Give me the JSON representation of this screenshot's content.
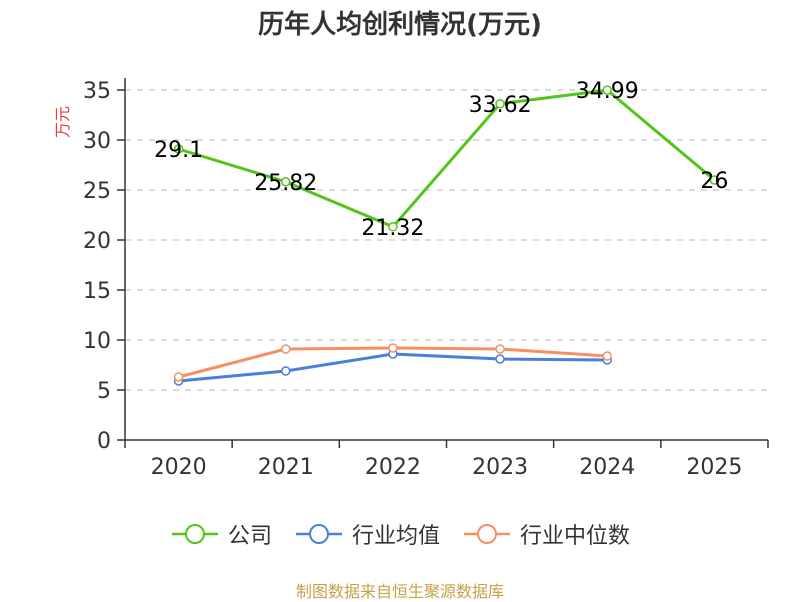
{
  "chart_data": {
    "type": "line",
    "title": "历年人均创利情况(万元)",
    "ylabel": "万元",
    "xlabel": "",
    "categories": [
      "2020",
      "2021",
      "2022",
      "2023",
      "2024",
      "2025"
    ],
    "ylim": [
      0,
      35
    ],
    "yticks": [
      0,
      5,
      10,
      15,
      20,
      25,
      30,
      35
    ],
    "grid": true,
    "legend_position": "bottom",
    "series": [
      {
        "name": "公司",
        "color": "#52c41a",
        "values": [
          29.1,
          25.82,
          21.32,
          33.62,
          34.99,
          26
        ],
        "labels": [
          "29.1",
          "25.82",
          "21.32",
          "33.62",
          "34.99",
          "26"
        ]
      },
      {
        "name": "行业均值",
        "color": "#4a7fdc",
        "values": [
          5.9,
          6.9,
          8.6,
          8.1,
          8.0,
          null
        ]
      },
      {
        "name": "行业中位数",
        "color": "#f59062",
        "values": [
          6.3,
          9.1,
          9.2,
          9.1,
          8.4,
          null
        ]
      }
    ]
  },
  "source_note": "制图数据来自恒生聚源数据库"
}
